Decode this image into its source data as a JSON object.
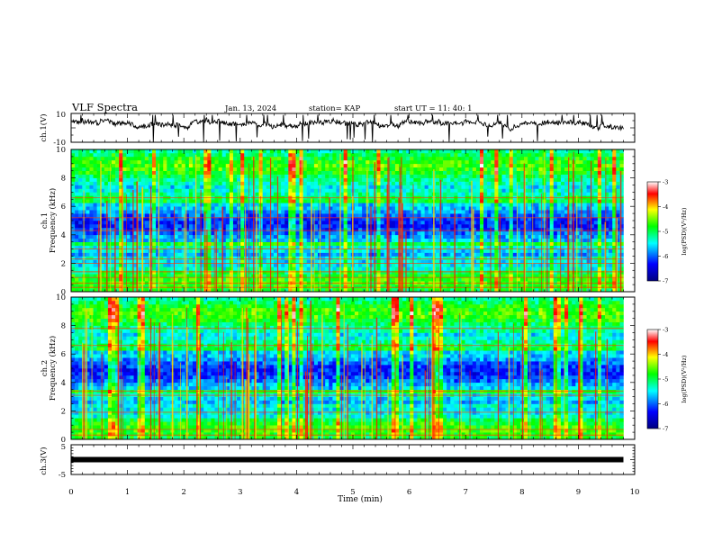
{
  "header": {
    "title": "VLF Spectra",
    "date": "Jan. 13, 2024",
    "station": "station= KAP",
    "start": "start UT =  11: 40: 1"
  },
  "chart_data": [
    {
      "panel": "ch1-waveform",
      "type": "line",
      "ylabel": "ch.1(V)",
      "ylim": [
        -10,
        10
      ],
      "yticks": [
        "10",
        "-10"
      ],
      "xlim": [
        0,
        10
      ],
      "trace_end_min": 9.8,
      "baseline_v": 3,
      "noise_amplitude_v": 3
    },
    {
      "panel": "ch1-spectrogram",
      "type": "heatmap",
      "ylabel": "ch.1\nFrequency (kHz)",
      "ylim": [
        0,
        10
      ],
      "yticks": [
        "0",
        "2",
        "4",
        "6",
        "8",
        "10"
      ],
      "xlim": [
        0,
        10
      ],
      "colorbar": {
        "label": "log(PSD)(V²/Hz)",
        "range": [
          -7,
          -3
        ],
        "ticks": [
          "-3",
          "-4",
          "-5",
          "-6",
          "-7"
        ]
      },
      "bands_khz": [
        0.3,
        0.6,
        1.0,
        1.4,
        2.0,
        2.3,
        3.0,
        4.3,
        5.2,
        6.6
      ]
    },
    {
      "panel": "ch2-spectrogram",
      "type": "heatmap",
      "ylabel": "ch.2\nFrequency (kHz)",
      "ylim": [
        0,
        10
      ],
      "yticks": [
        "0",
        "2",
        "4",
        "6",
        "8",
        "10"
      ],
      "xlim": [
        0,
        10
      ],
      "colorbar": {
        "label": "log(PSD)(V²/Hz)",
        "range": [
          -7,
          -3
        ],
        "ticks": [
          "-3",
          "-4",
          "-5",
          "-6",
          "-7"
        ]
      },
      "bands_khz": [
        0.3,
        0.7,
        1.9,
        3.1,
        3.4,
        6.6,
        7.8
      ]
    },
    {
      "panel": "ch3-waveform",
      "type": "line",
      "ylabel": "ch.3(V)",
      "ylim": [
        -5,
        5
      ],
      "yticks": [
        "5",
        "0",
        "-5"
      ],
      "xlim": [
        0,
        10
      ],
      "trace_end_min": 9.8,
      "constant_v": 0
    }
  ],
  "xaxis": {
    "label": "Time (min)",
    "ticks": [
      "0",
      "1",
      "2",
      "3",
      "4",
      "5",
      "6",
      "7",
      "8",
      "9",
      "10"
    ]
  },
  "colors": {
    "colormap": [
      "#00007f",
      "#0000ff",
      "#00ffff",
      "#00ff00",
      "#ffff00",
      "#ff0000",
      "#ffffff"
    ]
  }
}
